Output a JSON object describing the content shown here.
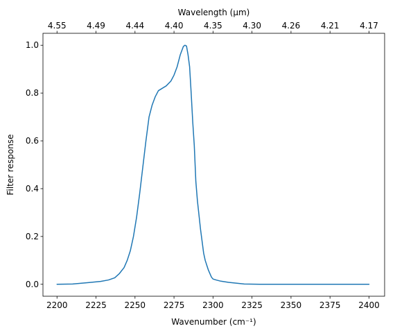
{
  "chart_data": {
    "type": "line",
    "xlabel": "Wavenumber (cm⁻¹)",
    "ylabel": "Filter response",
    "top_xlabel": "Wavelength (μm)",
    "xlim": [
      2191,
      2410
    ],
    "ylim": [
      -0.05,
      1.05
    ],
    "x_ticks": [
      2200,
      2225,
      2250,
      2275,
      2300,
      2325,
      2350,
      2375,
      2400
    ],
    "x_tick_labels": [
      "2200",
      "2225",
      "2250",
      "2275",
      "2300",
      "2325",
      "2350",
      "2375",
      "2400"
    ],
    "y_ticks": [
      0.0,
      0.2,
      0.4,
      0.6,
      0.8,
      1.0
    ],
    "y_tick_labels": [
      "0.0",
      "0.2",
      "0.4",
      "0.6",
      "0.8",
      "1.0"
    ],
    "top_ticks": [
      {
        "wavenumber": 2200,
        "label": "4.55"
      },
      {
        "wavenumber": 2225,
        "label": "4.49"
      },
      {
        "wavenumber": 2250,
        "label": "4.44"
      },
      {
        "wavenumber": 2275,
        "label": "4.40"
      },
      {
        "wavenumber": 2300,
        "label": "4.35"
      },
      {
        "wavenumber": 2325,
        "label": "4.30"
      },
      {
        "wavenumber": 2350,
        "label": "4.26"
      },
      {
        "wavenumber": 2375,
        "label": "4.21"
      },
      {
        "wavenumber": 2400,
        "label": "4.17"
      }
    ],
    "grid": false,
    "line_color": "#1f77b4",
    "series": [
      {
        "x": [
          2200,
          2210,
          2220,
          2228,
          2233,
          2237,
          2240,
          2243,
          2245,
          2247,
          2249,
          2251,
          2253,
          2255,
          2257,
          2259,
          2261,
          2263,
          2265,
          2267,
          2270,
          2273,
          2275,
          2277,
          2279,
          2281,
          2282,
          2283,
          2284,
          2285,
          2286,
          2287,
          2288,
          2289,
          2290,
          2291,
          2292,
          2293,
          2294,
          2295,
          2296,
          2297,
          2298,
          2299,
          2300,
          2302,
          2305,
          2310,
          2320,
          2330,
          2340,
          2350,
          2360,
          2370,
          2380,
          2390,
          2400
        ],
        "y": [
          0.0,
          0.001,
          0.007,
          0.012,
          0.018,
          0.027,
          0.045,
          0.07,
          0.1,
          0.14,
          0.2,
          0.28,
          0.38,
          0.49,
          0.6,
          0.7,
          0.75,
          0.785,
          0.81,
          0.818,
          0.83,
          0.85,
          0.875,
          0.91,
          0.96,
          0.995,
          1.0,
          0.997,
          0.96,
          0.91,
          0.8,
          0.68,
          0.58,
          0.43,
          0.35,
          0.29,
          0.23,
          0.18,
          0.13,
          0.1,
          0.08,
          0.06,
          0.045,
          0.03,
          0.022,
          0.018,
          0.013,
          0.008,
          0.001,
          0.0,
          0.0,
          0.0,
          0.0,
          0.0,
          0.0,
          0.0,
          0.0
        ]
      }
    ]
  }
}
